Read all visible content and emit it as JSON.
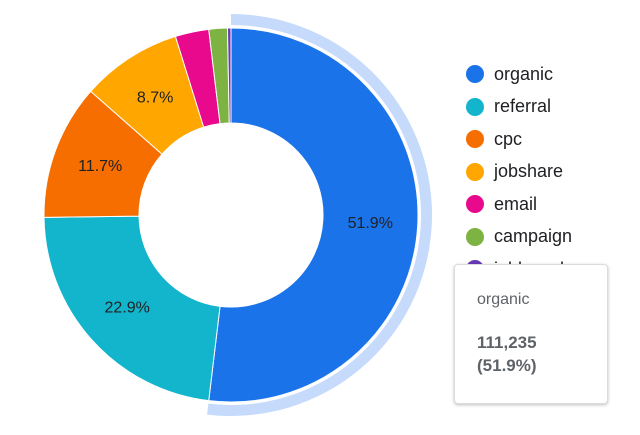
{
  "chart_data": {
    "type": "pie",
    "variant": "donut",
    "slices": [
      {
        "name": "organic",
        "percent": 51.9,
        "label": "51.9%",
        "color": "#1a73e8"
      },
      {
        "name": "referral",
        "percent": 22.9,
        "label": "22.9%",
        "color": "#12b5cb"
      },
      {
        "name": "cpc",
        "percent": 11.7,
        "label": "11.7%",
        "color": "#f66d00"
      },
      {
        "name": "jobshare",
        "percent": 8.7,
        "label": "8.7%",
        "color": "#ffa600"
      },
      {
        "name": "email",
        "percent": 2.9,
        "label": "",
        "color": "#e8098c"
      },
      {
        "name": "campaign",
        "percent": 1.6,
        "label": "",
        "color": "#7cb342"
      },
      {
        "name": "jobboard",
        "percent": 0.3,
        "label": "",
        "color": "#673ab7"
      }
    ],
    "highlighted": "organic",
    "highlight_color": "#c6dafc",
    "legend": [
      "organic",
      "referral",
      "cpc",
      "jobshare",
      "email",
      "campaign",
      "jobboard"
    ],
    "legend_position": "right"
  },
  "tooltip": {
    "title": "organic",
    "value": "111,235",
    "percent": "(51.9%)"
  }
}
